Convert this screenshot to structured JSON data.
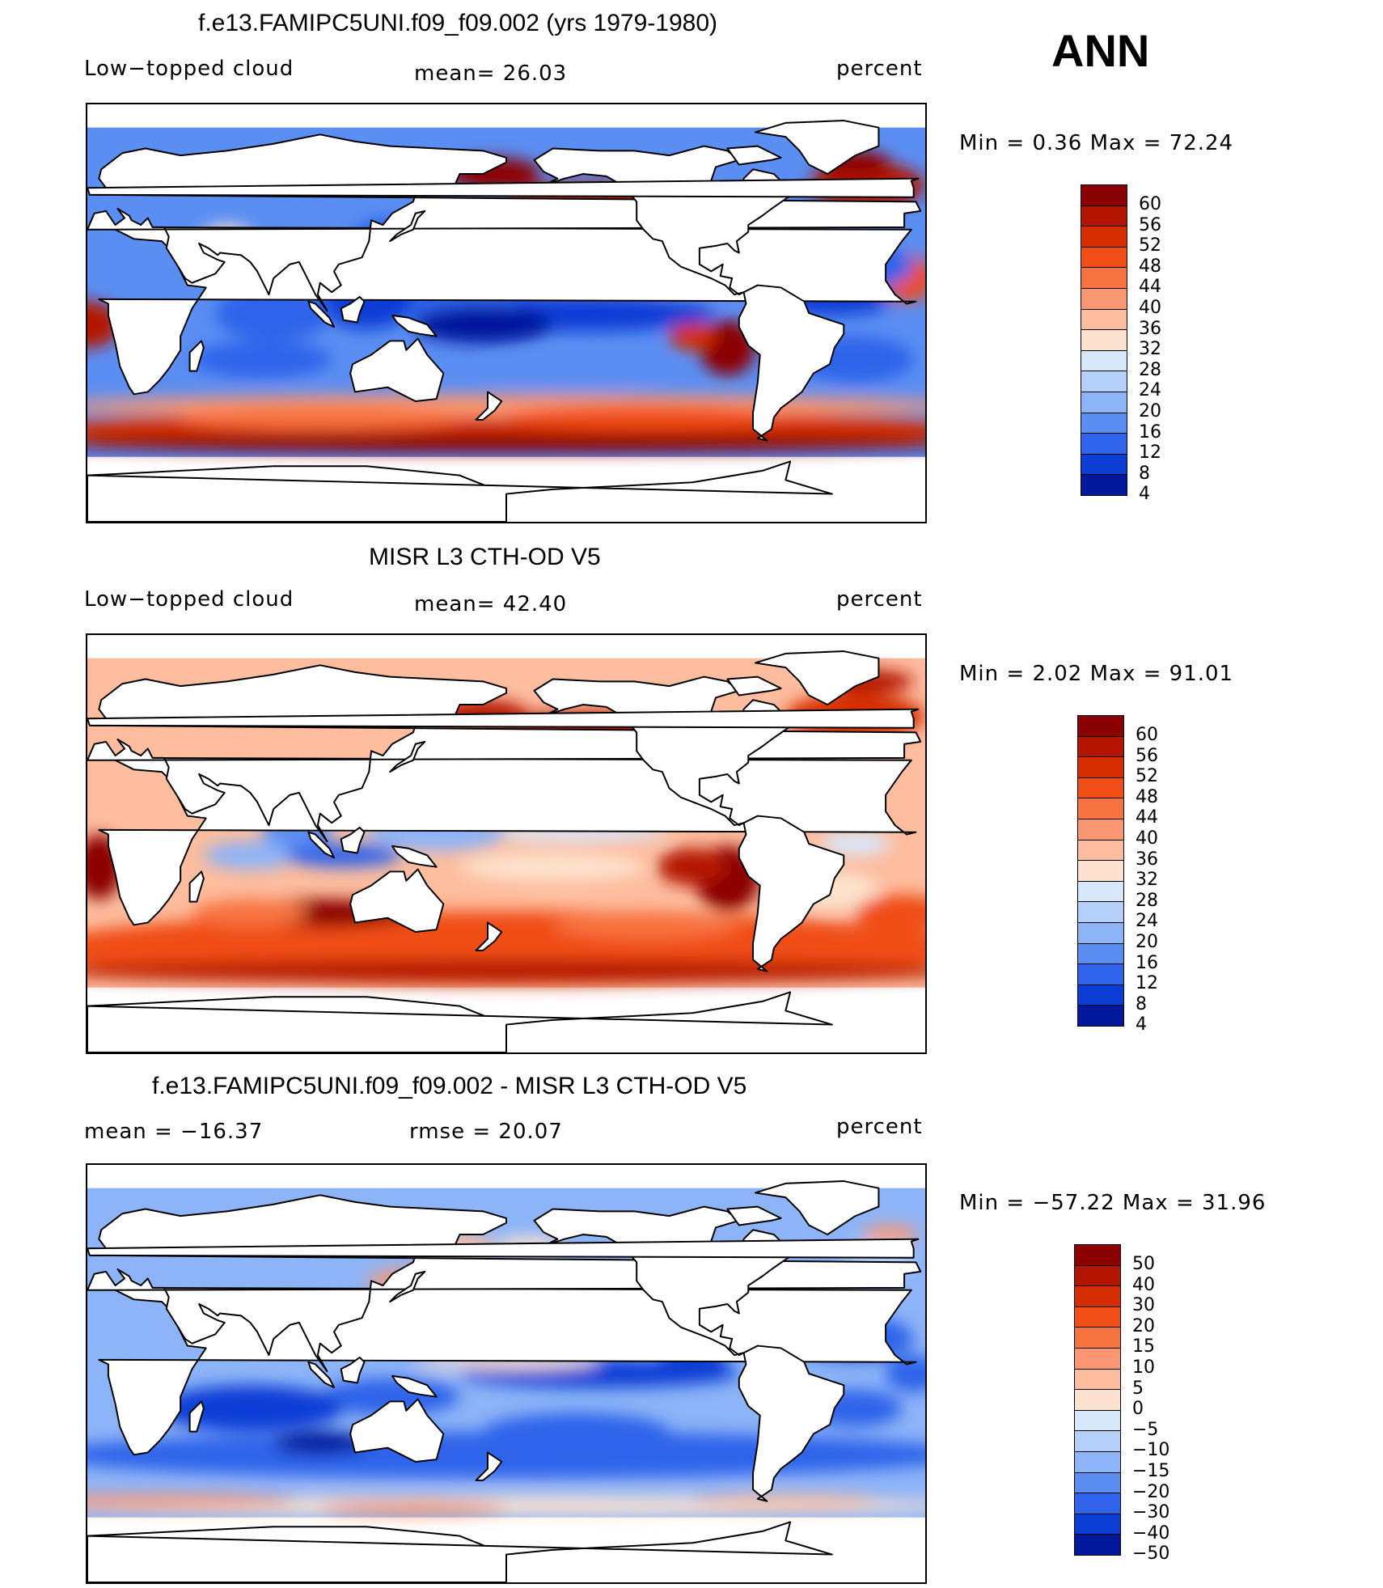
{
  "season": "ANN",
  "chart_data": [
    {
      "type": "heatmap",
      "title": "f.e13.FAMIPC5UNI.f09_f09.002 (yrs 1979-1980)",
      "left_label": "Low−topped cloud",
      "center_label": "mean=   26.03",
      "right_label": "percent",
      "minmax": "Min  =     0.36  Max  =    72.24",
      "levels": [
        "60",
        "56",
        "52",
        "48",
        "44",
        "40",
        "36",
        "32",
        "28",
        "24",
        "20",
        "16",
        "12",
        "8",
        "4"
      ],
      "colors": [
        "#8b0000",
        "#b31500",
        "#d62d00",
        "#f04e16",
        "#f7733f",
        "#fa9772",
        "#fdbd9e",
        "#fde3cf",
        "#d7e8fb",
        "#b3cffa",
        "#8db4f7",
        "#5b8ef2",
        "#2f64ea",
        "#0c3ed6",
        "#00199c"
      ],
      "mean": 26.03,
      "min": 0.36,
      "max": 72.24,
      "units": "percent"
    },
    {
      "type": "heatmap",
      "title": "MISR L3 CTH-OD V5",
      "left_label": "Low−topped cloud",
      "center_label": "mean=   42.40",
      "right_label": "percent",
      "minmax": "Min  =     2.02  Max  =    91.01",
      "levels": [
        "60",
        "56",
        "52",
        "48",
        "44",
        "40",
        "36",
        "32",
        "28",
        "24",
        "20",
        "16",
        "12",
        "8",
        "4"
      ],
      "colors": [
        "#8b0000",
        "#b31500",
        "#d62d00",
        "#f04e16",
        "#f7733f",
        "#fa9772",
        "#fdbd9e",
        "#fde3cf",
        "#d7e8fb",
        "#b3cffa",
        "#8db4f7",
        "#5b8ef2",
        "#2f64ea",
        "#0c3ed6",
        "#00199c"
      ],
      "mean": 42.4,
      "min": 2.02,
      "max": 91.01,
      "units": "percent"
    },
    {
      "type": "heatmap",
      "title": "f.e13.FAMIPC5UNI.f09_f09.002 - MISR L3 CTH-OD V5",
      "left_label": "mean  =  −16.37",
      "center_label": "rmse  =    20.07",
      "right_label": "percent",
      "minmax": "Min  =  −57.22  Max  =    31.96",
      "levels": [
        "50",
        "40",
        "30",
        "20",
        "15",
        "10",
        "5",
        "0",
        "−5",
        "−10",
        "−15",
        "−20",
        "−30",
        "−40",
        "−50"
      ],
      "colors": [
        "#8b0000",
        "#b31500",
        "#d62d00",
        "#f04e16",
        "#f7733f",
        "#fa9772",
        "#fdbd9e",
        "#fde3cf",
        "#d7e8fb",
        "#b3cffa",
        "#8db4f7",
        "#5b8ef2",
        "#2f64ea",
        "#0c3ed6",
        "#00199c"
      ],
      "mean": -16.37,
      "rmse": 20.07,
      "min": -57.22,
      "max": 31.96,
      "units": "percent"
    }
  ]
}
